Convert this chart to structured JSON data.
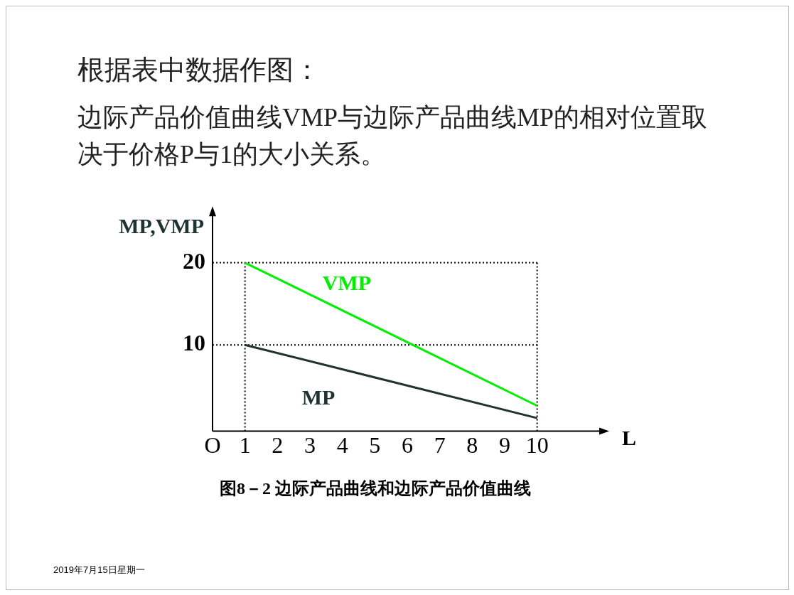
{
  "chart_data": {
    "type": "line",
    "title": "根据表中数据作图：",
    "subtitle": "边际产品价值曲线VMP与边际产品曲线MP的相对位置取决于价格P与1的大小关系。",
    "xlabel": "L",
    "ylabel": "MP,VMP",
    "x": [
      1,
      10
    ],
    "series": [
      {
        "name": "VMP",
        "color": "#00ee00",
        "values": [
          20,
          2.6
        ]
      },
      {
        "name": "MP",
        "color": "#1f3333",
        "values": [
          10,
          1.1
        ]
      }
    ],
    "xlim": [
      0,
      12
    ],
    "xticks": [
      {
        "value": 0,
        "label": "O"
      },
      1,
      2,
      3,
      4,
      5,
      6,
      7,
      8,
      9,
      10
    ],
    "ylim": [
      -0.5,
      26
    ],
    "yticks": [
      10,
      20
    ],
    "ref_lines": [
      {
        "axis": "y",
        "value": 20,
        "line_style": "dotted"
      },
      {
        "axis": "y",
        "value": 10,
        "line_style": "dotted"
      },
      {
        "axis": "x",
        "value": 1,
        "line_style": "dotted"
      },
      {
        "axis": "x",
        "value": 10,
        "line_style": "dotted"
      }
    ],
    "grid": false,
    "legend": false,
    "marker": "none",
    "line_style": "solid",
    "annotations": [
      "图8－2  边际产品曲线和边际产品价值曲线",
      "2019年7月15日星期一"
    ]
  }
}
